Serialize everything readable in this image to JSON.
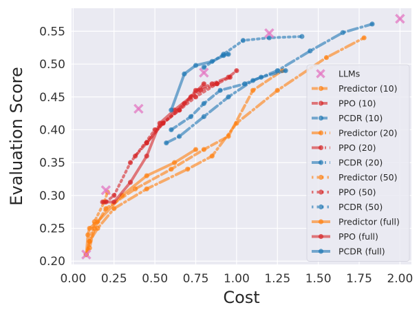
{
  "chart_data": {
    "type": "line",
    "xlabel": "Cost",
    "ylabel": "Evaluation Score",
    "xlim": [
      -0.01,
      2.07
    ],
    "ylim": [
      0.195,
      0.585
    ],
    "xticks": [
      0.0,
      0.25,
      0.5,
      0.75,
      1.0,
      1.25,
      1.5,
      1.75,
      2.0
    ],
    "xtick_labels": [
      "0.00",
      "0.25",
      "0.50",
      "0.75",
      "1.00",
      "1.25",
      "1.50",
      "1.75",
      "2.00"
    ],
    "yticks": [
      0.2,
      0.25,
      0.3,
      0.35,
      0.4,
      0.45,
      0.5,
      0.55
    ],
    "ytick_labels": [
      "0.20",
      "0.25",
      "0.30",
      "0.35",
      "0.40",
      "0.45",
      "0.50",
      "0.55"
    ],
    "grid": true,
    "legend_position": "lower-right",
    "llms": {
      "name": "LLMs",
      "color": "#e377c2",
      "x": [
        0.08,
        0.2,
        0.4,
        0.8,
        1.2,
        2.0
      ],
      "y": [
        0.21,
        0.308,
        0.432,
        0.487,
        0.547,
        0.569
      ]
    },
    "series": [
      {
        "name": "Predictor (10)",
        "color": "#ff7f0e",
        "dash": "9,5",
        "x": [
          0.08,
          0.1,
          0.13,
          0.2,
          0.38,
          0.6,
          0.8,
          0.95,
          1.1,
          1.28
        ],
        "y": [
          0.21,
          0.22,
          0.25,
          0.28,
          0.31,
          0.34,
          0.37,
          0.39,
          0.46,
          0.49
        ]
      },
      {
        "name": "PPO (10)",
        "color": "#d62728",
        "dash": "9,5",
        "x": [
          0.38,
          0.45,
          0.55,
          0.65,
          0.75,
          0.85,
          0.95,
          1.0
        ],
        "y": [
          0.36,
          0.38,
          0.41,
          0.43,
          0.46,
          0.47,
          0.48,
          0.49
        ]
      },
      {
        "name": "PCDR (10)",
        "color": "#1f77b4",
        "dash": "9,5",
        "x": [
          0.6,
          0.72,
          0.8,
          0.9,
          1.05,
          1.15,
          1.3
        ],
        "y": [
          0.4,
          0.42,
          0.44,
          0.46,
          0.47,
          0.48,
          0.49
        ]
      },
      {
        "name": "Predictor (20)",
        "color": "#ff7f0e",
        "dash": "14,5,2,5",
        "x": [
          0.08,
          0.1,
          0.15,
          0.25,
          0.45,
          0.7,
          0.85,
          1.0,
          1.25,
          1.55,
          1.78
        ],
        "y": [
          0.21,
          0.23,
          0.25,
          0.28,
          0.31,
          0.34,
          0.36,
          0.41,
          0.46,
          0.51,
          0.54
        ]
      },
      {
        "name": "PPO (20)",
        "color": "#d62728",
        "dash": "14,5,2,5",
        "x": [
          0.45,
          0.55,
          0.68,
          0.78,
          0.88,
          0.96
        ],
        "y": [
          0.38,
          0.41,
          0.44,
          0.46,
          0.47,
          0.48
        ]
      },
      {
        "name": "PCDR (20)",
        "color": "#1f77b4",
        "dash": "14,5,2,5",
        "x": [
          0.57,
          0.65,
          0.8,
          0.95,
          1.1,
          1.25,
          1.45,
          1.65,
          1.83
        ],
        "y": [
          0.38,
          0.39,
          0.42,
          0.45,
          0.475,
          0.49,
          0.52,
          0.548,
          0.561
        ]
      },
      {
        "name": "Predictor (50)",
        "color": "#ff7f0e",
        "dash": "2.5,5",
        "x": [
          0.08,
          0.1,
          0.13,
          0.19,
          0.21
        ],
        "y": [
          0.21,
          0.23,
          0.26,
          0.29,
          0.305
        ]
      },
      {
        "name": "PPO (50)",
        "color": "#d62728",
        "dash": "2.5,5",
        "x": [
          0.2,
          0.25,
          0.35,
          0.5,
          0.65,
          0.75,
          0.88
        ],
        "y": [
          0.29,
          0.3,
          0.35,
          0.4,
          0.43,
          0.45,
          0.47
        ]
      },
      {
        "name": "PCDR (50)",
        "color": "#1f77b4",
        "dash": "2.5,5",
        "x": [
          0.8,
          0.92,
          1.04,
          1.2,
          1.4
        ],
        "y": [
          0.495,
          0.515,
          0.536,
          0.54,
          0.542
        ]
      },
      {
        "name": "Predictor (full)",
        "color": "#ff7f0e",
        "dash": "",
        "x": [
          0.08,
          0.09,
          0.1,
          0.15,
          0.3,
          0.45,
          0.62,
          0.75
        ],
        "y": [
          0.21,
          0.24,
          0.25,
          0.26,
          0.3,
          0.33,
          0.35,
          0.37
        ]
      },
      {
        "name": "PPO (full)",
        "color": "#d62728",
        "dash": "",
        "x": [
          0.18,
          0.25,
          0.35,
          0.45,
          0.53,
          0.62,
          0.72,
          0.8
        ],
        "y": [
          0.29,
          0.29,
          0.32,
          0.36,
          0.41,
          0.43,
          0.45,
          0.47
        ]
      },
      {
        "name": "PCDR (full)",
        "color": "#1f77b4",
        "dash": "",
        "x": [
          0.6,
          0.68,
          0.75,
          0.85,
          0.92,
          0.95
        ],
        "y": [
          0.43,
          0.485,
          0.498,
          0.504,
          0.513,
          0.515
        ]
      }
    ]
  }
}
